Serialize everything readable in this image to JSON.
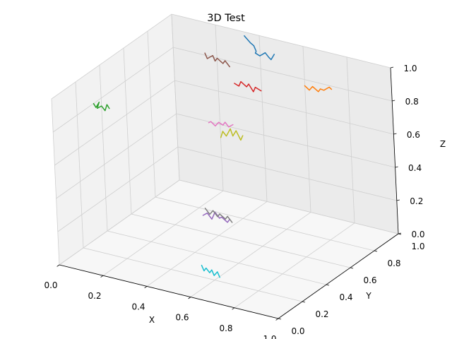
{
  "chart_data": {
    "type": "line",
    "projection": "3d",
    "title": "3D Test",
    "xlabel": "X",
    "ylabel": "Y",
    "zlabel": "Z",
    "xlim": [
      0,
      1
    ],
    "ylim": [
      0,
      1
    ],
    "zlim": [
      0,
      1
    ],
    "xticks": [
      "0.0",
      "0.2",
      "0.4",
      "0.6",
      "0.8",
      "1.0"
    ],
    "yticks": [
      "0.0",
      "0.2",
      "0.4",
      "0.6",
      "0.8",
      "1.0"
    ],
    "zticks": [
      "0.0",
      "0.2",
      "0.4",
      "0.6",
      "0.8",
      "1.0"
    ],
    "grid": true,
    "colors": [
      "#1f77b4",
      "#ff7f0e",
      "#2ca02c",
      "#d62728",
      "#9467bd",
      "#8c564b",
      "#e377c2",
      "#7f7f7f",
      "#bcbd22",
      "#17becf"
    ],
    "series": [
      {
        "color": "#1f77b4",
        "x": [
          0.4,
          0.42,
          0.43,
          0.44,
          0.43,
          0.45,
          0.47,
          0.48,
          0.49,
          0.5
        ],
        "y": [
          0.88,
          0.89,
          0.9,
          0.9,
          0.91,
          0.91,
          0.92,
          0.93,
          0.93,
          0.94
        ],
        "z": [
          1.06,
          1.02,
          1.0,
          0.97,
          0.95,
          0.94,
          0.96,
          0.93,
          0.92,
          0.95
        ]
      },
      {
        "color": "#ff7f0e",
        "x": [
          0.68,
          0.7,
          0.71,
          0.73,
          0.74,
          0.75,
          0.77,
          0.78
        ],
        "y": [
          0.86,
          0.86,
          0.87,
          0.88,
          0.88,
          0.89,
          0.9,
          0.9
        ],
        "z": [
          0.86,
          0.84,
          0.86,
          0.83,
          0.85,
          0.84,
          0.86,
          0.85
        ]
      },
      {
        "color": "#2ca02c",
        "x": [
          0.05,
          0.06,
          0.07,
          0.06,
          0.08,
          0.09,
          0.1,
          0.11
        ],
        "y": [
          0.25,
          0.25,
          0.26,
          0.26,
          0.26,
          0.27,
          0.27,
          0.27
        ],
        "z": [
          0.86,
          0.84,
          0.87,
          0.83,
          0.85,
          0.82,
          0.86,
          0.84
        ]
      },
      {
        "color": "#d62728",
        "x": [
          0.43,
          0.45,
          0.46,
          0.48,
          0.49,
          0.51,
          0.52,
          0.54
        ],
        "y": [
          0.73,
          0.73,
          0.73,
          0.74,
          0.74,
          0.74,
          0.74,
          0.75
        ],
        "z": [
          0.86,
          0.85,
          0.88,
          0.85,
          0.87,
          0.83,
          0.86,
          0.84
        ]
      },
      {
        "color": "#9467bd",
        "x": [
          0.48,
          0.5,
          0.52,
          0.53,
          0.55,
          0.56,
          0.58,
          0.59
        ],
        "y": [
          0.34,
          0.34,
          0.34,
          0.35,
          0.35,
          0.35,
          0.36,
          0.36
        ],
        "z": [
          0.28,
          0.3,
          0.27,
          0.31,
          0.28,
          0.29,
          0.26,
          0.28
        ]
      },
      {
        "color": "#8c564b",
        "x": [
          0.3,
          0.31,
          0.33,
          0.34,
          0.35,
          0.37,
          0.38,
          0.4
        ],
        "y": [
          0.73,
          0.73,
          0.74,
          0.74,
          0.74,
          0.75,
          0.75,
          0.75
        ],
        "z": [
          1.0,
          0.97,
          0.99,
          0.96,
          0.98,
          0.95,
          0.97,
          0.94
        ]
      },
      {
        "color": "#e377c2",
        "x": [
          0.4,
          0.41,
          0.43,
          0.44,
          0.46,
          0.47,
          0.48,
          0.5
        ],
        "y": [
          0.56,
          0.56,
          0.56,
          0.57,
          0.57,
          0.57,
          0.58,
          0.58
        ],
        "z": [
          0.7,
          0.71,
          0.69,
          0.71,
          0.7,
          0.72,
          0.69,
          0.71
        ]
      },
      {
        "color": "#7f7f7f",
        "x": [
          0.56,
          0.58,
          0.59,
          0.61,
          0.62,
          0.64,
          0.65,
          0.67
        ],
        "y": [
          0.22,
          0.22,
          0.23,
          0.23,
          0.23,
          0.24,
          0.24,
          0.24
        ],
        "z": [
          0.41,
          0.38,
          0.4,
          0.37,
          0.39,
          0.36,
          0.38,
          0.35
        ]
      },
      {
        "color": "#bcbd22",
        "x": [
          0.43,
          0.44,
          0.45,
          0.47,
          0.48,
          0.49,
          0.51,
          0.52
        ],
        "y": [
          0.6,
          0.6,
          0.61,
          0.61,
          0.61,
          0.62,
          0.62,
          0.62
        ],
        "z": [
          0.6,
          0.64,
          0.61,
          0.66,
          0.62,
          0.65,
          0.6,
          0.63
        ]
      },
      {
        "color": "#17becf",
        "x": [
          0.6,
          0.61,
          0.62,
          0.63,
          0.64,
          0.65,
          0.66,
          0.67
        ],
        "y": [
          0.1,
          0.1,
          0.1,
          0.11,
          0.11,
          0.11,
          0.12,
          0.12
        ],
        "z": [
          0.14,
          0.11,
          0.13,
          0.1,
          0.12,
          0.09,
          0.11,
          0.08
        ]
      }
    ]
  }
}
